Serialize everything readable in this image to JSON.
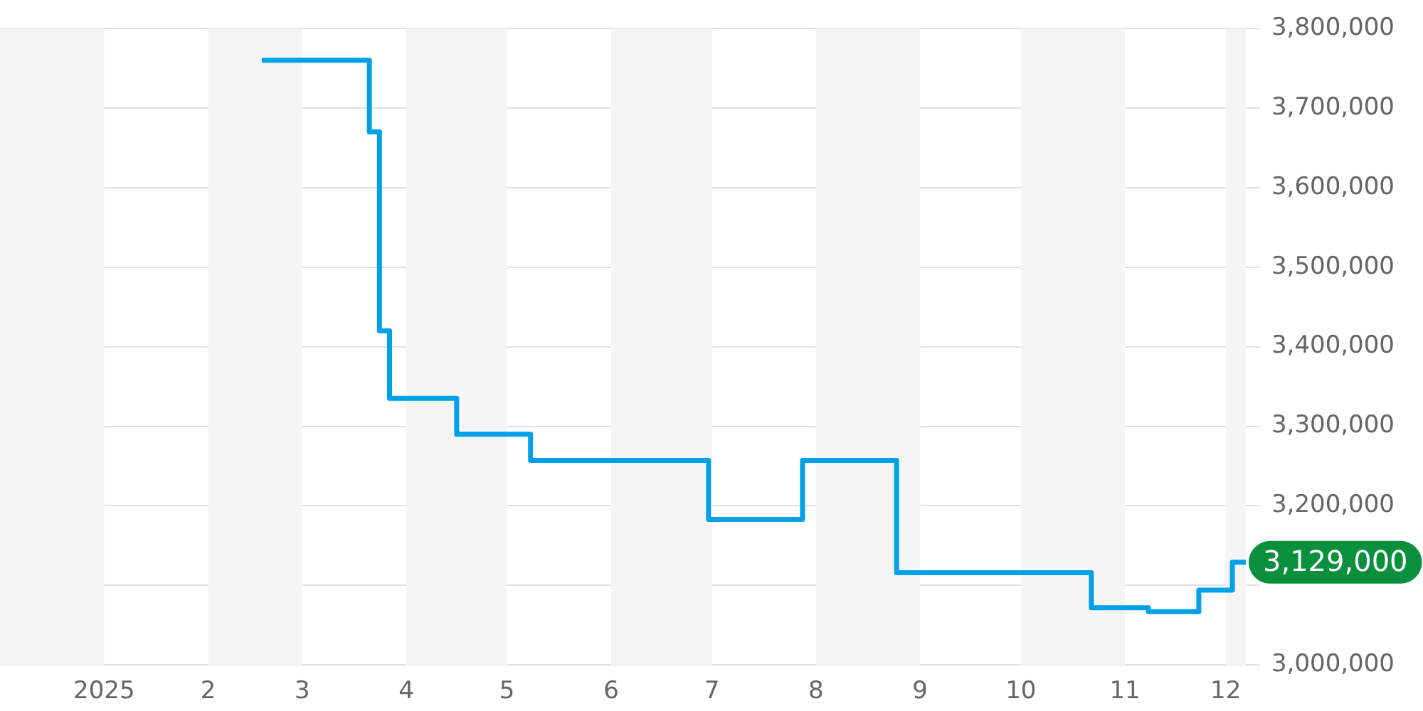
{
  "chart_data": {
    "type": "step",
    "xlim": [
      "2024-12-01",
      "2025-12-07"
    ],
    "xticks": [
      {
        "value": "2025-01-01",
        "label": "2025"
      },
      {
        "value": "2025-02-01",
        "label": "2"
      },
      {
        "value": "2025-03-01",
        "label": "3"
      },
      {
        "value": "2025-04-01",
        "label": "4"
      },
      {
        "value": "2025-05-01",
        "label": "5"
      },
      {
        "value": "2025-06-01",
        "label": "6"
      },
      {
        "value": "2025-07-01",
        "label": "7"
      },
      {
        "value": "2025-08-01",
        "label": "8"
      },
      {
        "value": "2025-09-01",
        "label": "9"
      },
      {
        "value": "2025-10-01",
        "label": "10"
      },
      {
        "value": "2025-11-01",
        "label": "11"
      },
      {
        "value": "2025-12-01",
        "label": "12"
      }
    ],
    "ylim": [
      3000000,
      3800000
    ],
    "yticks": [
      {
        "value": 3000000,
        "label": "3,000,000"
      },
      {
        "value": 3100000,
        "label": null
      },
      {
        "value": 3200000,
        "label": "3,200,000"
      },
      {
        "value": 3300000,
        "label": "3,300,000"
      },
      {
        "value": 3400000,
        "label": "3,400,000"
      },
      {
        "value": 3500000,
        "label": "3,500,000"
      },
      {
        "value": 3600000,
        "label": "3,600,000"
      },
      {
        "value": 3700000,
        "label": "3,700,000"
      },
      {
        "value": 3800000,
        "label": "3,800,000"
      }
    ],
    "grid": "y",
    "legend": false,
    "marker": "none",
    "series": [
      {
        "color": "#00a0e9",
        "x": [
          "2025-02-17",
          "2025-03-21",
          "2025-03-24",
          "2025-03-27",
          "2025-04-16",
          "2025-05-08",
          "2025-06-30",
          "2025-07-28",
          "2025-08-25",
          "2025-10-22",
          "2025-11-08",
          "2025-11-23",
          "2025-12-03",
          "2025-12-07"
        ],
        "values": [
          3760000,
          3670000,
          3420000,
          3335000,
          3290000,
          3257000,
          3183000,
          3257000,
          3116000,
          3072000,
          3067000,
          3094000,
          3129000,
          3129000
        ]
      }
    ],
    "bands": [
      {
        "axis": "x",
        "from": "2024-12-01",
        "to": "2025-01-01",
        "color": "#f5f5f5"
      },
      {
        "axis": "x",
        "from": "2025-02-01",
        "to": "2025-03-01",
        "color": "#f5f5f5"
      },
      {
        "axis": "x",
        "from": "2025-04-01",
        "to": "2025-05-01",
        "color": "#f5f5f5"
      },
      {
        "axis": "x",
        "from": "2025-06-01",
        "to": "2025-07-01",
        "color": "#f5f5f5"
      },
      {
        "axis": "x",
        "from": "2025-08-01",
        "to": "2025-09-01",
        "color": "#f5f5f5"
      },
      {
        "axis": "x",
        "from": "2025-10-01",
        "to": "2025-11-01",
        "color": "#f5f5f5"
      },
      {
        "axis": "x",
        "from": "2025-12-01",
        "to": "2025-12-07",
        "color": "#f5f5f5"
      }
    ],
    "annotations": [
      {
        "text": "3,129,000",
        "x": "2025-12-07",
        "y": 3129000
      }
    ]
  }
}
